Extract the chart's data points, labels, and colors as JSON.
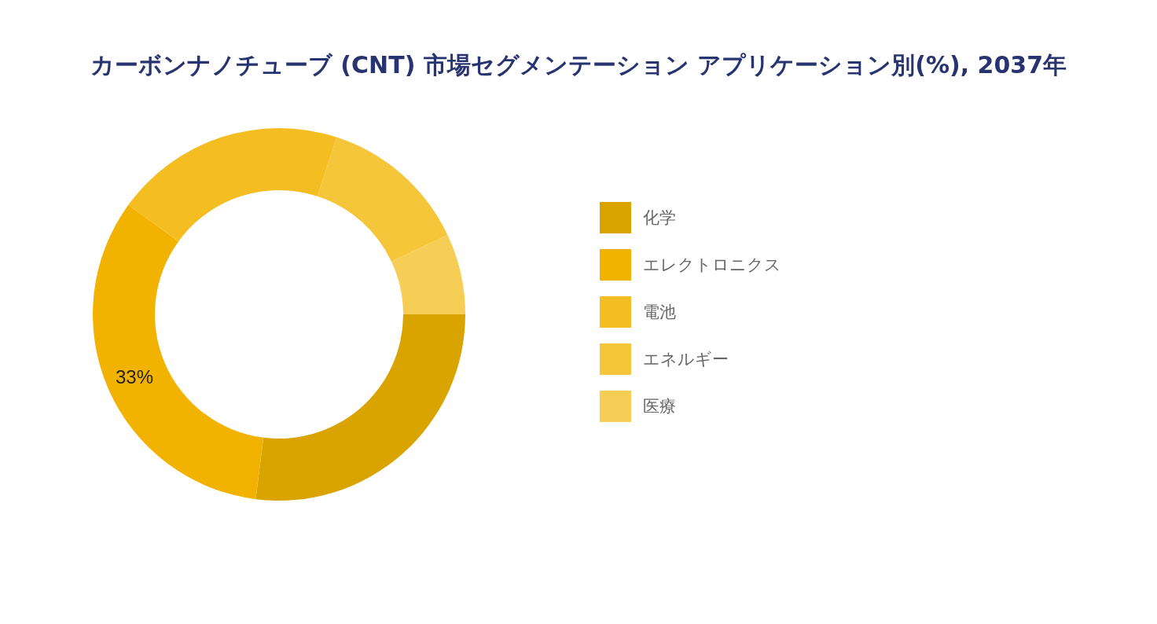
{
  "chart_data": {
    "type": "donut",
    "title": "カーボンナノチューブ (CNT) 市場セグメンテーション アプリケーション別(%), 2037年",
    "categories": [
      "化学",
      "エレクトロニクス",
      "電池",
      "エネルギー",
      "医療"
    ],
    "values": [
      27,
      33,
      20,
      13,
      7
    ],
    "colors": [
      "#d9a300",
      "#f2b300",
      "#f4bd22",
      "#f5c53a",
      "#f6cd55"
    ],
    "value_labels": [
      null,
      "33%",
      null,
      null,
      null
    ],
    "legend": "right"
  }
}
